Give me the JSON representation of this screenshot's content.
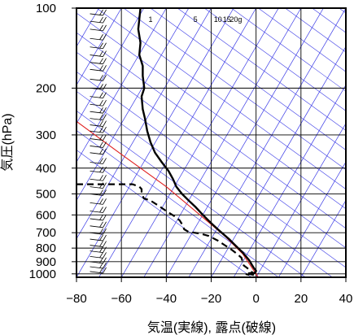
{
  "chart_data": {
    "type": "line",
    "subtype": "skew-t log-p aerological diagram",
    "xlabel": "気温(実線), 露点(破線)",
    "ylabel": "気圧(hPa)",
    "xlim": [
      -80,
      40
    ],
    "ylim": [
      1030,
      100
    ],
    "y_scale": "log",
    "x_ticks": [
      -80,
      -60,
      -40,
      -20,
      0,
      20,
      40
    ],
    "x_tick_labels": [
      "−80",
      "−60",
      "−40",
      "−20",
      "0",
      "20",
      "40"
    ],
    "y_ticks": [
      100,
      200,
      300,
      400,
      500,
      600,
      700,
      800,
      900,
      1000
    ],
    "y_tick_labels": [
      "100",
      "200",
      "300",
      "400",
      "500",
      "600",
      "700",
      "800",
      "900",
      "1000"
    ],
    "grid": true,
    "mixing_ratio_labels": [
      "1",
      "5",
      "10",
      "15",
      "20g"
    ],
    "colors": {
      "background_lines": "#3a3ae6",
      "parcel_curve": "#e02020",
      "temperature": "#000000",
      "dewpoint": "#000000",
      "grid": "#000000"
    },
    "series": [
      {
        "style": "solid",
        "points": [
          [
            -51.5,
            100
          ],
          [
            -52.0,
            110
          ],
          [
            -52.5,
            120
          ],
          [
            -51.5,
            135
          ],
          [
            -52.0,
            150
          ],
          [
            -50.5,
            165
          ],
          [
            -50.5,
            180
          ],
          [
            -49.8,
            200
          ],
          [
            -51.0,
            215
          ],
          [
            -50.5,
            240
          ],
          [
            -49.5,
            260
          ],
          [
            -48.5,
            290
          ],
          [
            -47.0,
            320
          ],
          [
            -45.0,
            350
          ],
          [
            -42.0,
            380
          ],
          [
            -39.0,
            410
          ],
          [
            -37.0,
            440
          ],
          [
            -35.5,
            470
          ],
          [
            -33.0,
            500
          ],
          [
            -30.0,
            530
          ],
          [
            -27.0,
            560
          ],
          [
            -24.5,
            590
          ],
          [
            -22.0,
            620
          ],
          [
            -19.5,
            650
          ],
          [
            -17.0,
            680
          ],
          [
            -14.5,
            710
          ],
          [
            -12.0,
            740
          ],
          [
            -10.0,
            770
          ],
          [
            -8.0,
            800
          ],
          [
            -6.0,
            830
          ],
          [
            -4.5,
            860
          ],
          [
            -3.0,
            890
          ],
          [
            -2.0,
            920
          ],
          [
            -1.0,
            950
          ],
          [
            0.0,
            975
          ],
          [
            -0.5,
            990
          ],
          [
            -3.0,
            1000
          ],
          [
            -1.0,
            1010
          ]
        ]
      },
      {
        "style": "dashed",
        "points": [
          [
            -80.0,
            460
          ],
          [
            -69.0,
            460
          ],
          [
            -55.0,
            460
          ],
          [
            -52.0,
            470
          ],
          [
            -51.0,
            480
          ],
          [
            -51.0,
            500
          ],
          [
            -50.0,
            520
          ],
          [
            -47.0,
            530
          ],
          [
            -44.0,
            550
          ],
          [
            -40.0,
            580
          ],
          [
            -36.0,
            610
          ],
          [
            -34.0,
            630
          ],
          [
            -33.0,
            650
          ],
          [
            -32.0,
            680
          ],
          [
            -30.0,
            695
          ],
          [
            -25.0,
            705
          ],
          [
            -21.0,
            720
          ],
          [
            -17.0,
            750
          ],
          [
            -14.0,
            780
          ],
          [
            -11.0,
            810
          ],
          [
            -8.5,
            840
          ],
          [
            -6.5,
            870
          ],
          [
            -6.0,
            900
          ],
          [
            -5.5,
            930
          ],
          [
            -4.0,
            950
          ],
          [
            -2.5,
            975
          ],
          [
            -1.5,
            990
          ],
          [
            -5.0,
            1000
          ],
          [
            -3.0,
            1010
          ]
        ]
      },
      {
        "style": "solid-red",
        "points": [
          [
            -80.5,
            265
          ],
          [
            -59,
            360
          ],
          [
            -40,
            470
          ],
          [
            -25,
            600
          ],
          [
            -14,
            720
          ],
          [
            -6,
            840
          ],
          [
            1,
            1030
          ]
        ]
      }
    ],
    "wind_barbs": {
      "x_temperature": -74,
      "pressures": [
        105,
        112,
        120,
        130,
        140,
        150,
        160,
        170,
        185,
        200,
        215,
        230,
        245,
        260,
        275,
        290,
        310,
        330,
        350,
        380,
        410,
        440,
        470,
        500,
        540,
        580,
        620,
        660,
        700,
        740,
        780,
        820,
        860,
        900,
        940,
        980
      ]
    }
  }
}
